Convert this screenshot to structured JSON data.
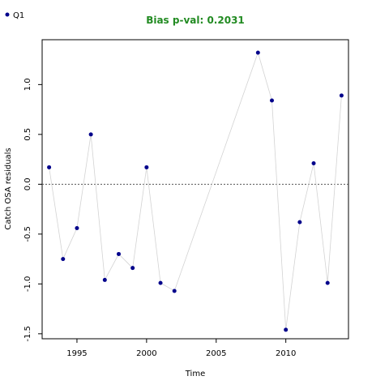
{
  "colors": {
    "title": "#228b22",
    "point": "#00008b",
    "line": "#d3d3d3",
    "reference": "#555555",
    "frame": "#000000"
  },
  "chart_data": {
    "type": "scatter",
    "title": "Bias p-val: 0.2031",
    "xlabel": "Time",
    "ylabel": "Catch OSA residuals",
    "xlim": [
      1992.5,
      2014.5
    ],
    "ylim": [
      -1.55,
      1.45
    ],
    "xticks": [
      1995,
      2000,
      2005,
      2010
    ],
    "yticks": [
      -1.5,
      -1.0,
      -0.5,
      0.0,
      0.5,
      1.0
    ],
    "ytick_labels": [
      "-1.5",
      "-1.0",
      "-0.5",
      "0.0",
      "0.5",
      "1.0"
    ],
    "reference_line": {
      "y": 0,
      "style": "dotted"
    },
    "connecting_line": true,
    "grid": false,
    "legend_placement": "top-left",
    "series": [
      {
        "name": "Q1",
        "x": [
          1993,
          1994,
          1995,
          1996,
          1997,
          1998,
          1999,
          2000,
          2001,
          2002,
          2008,
          2009,
          2010,
          2011,
          2012,
          2013,
          2014
        ],
        "y": [
          0.17,
          -0.75,
          -0.44,
          0.5,
          -0.96,
          -0.7,
          -0.84,
          0.17,
          -0.99,
          -1.07,
          1.32,
          0.84,
          -1.46,
          -0.38,
          0.21,
          -0.99,
          0.89
        ]
      }
    ]
  }
}
